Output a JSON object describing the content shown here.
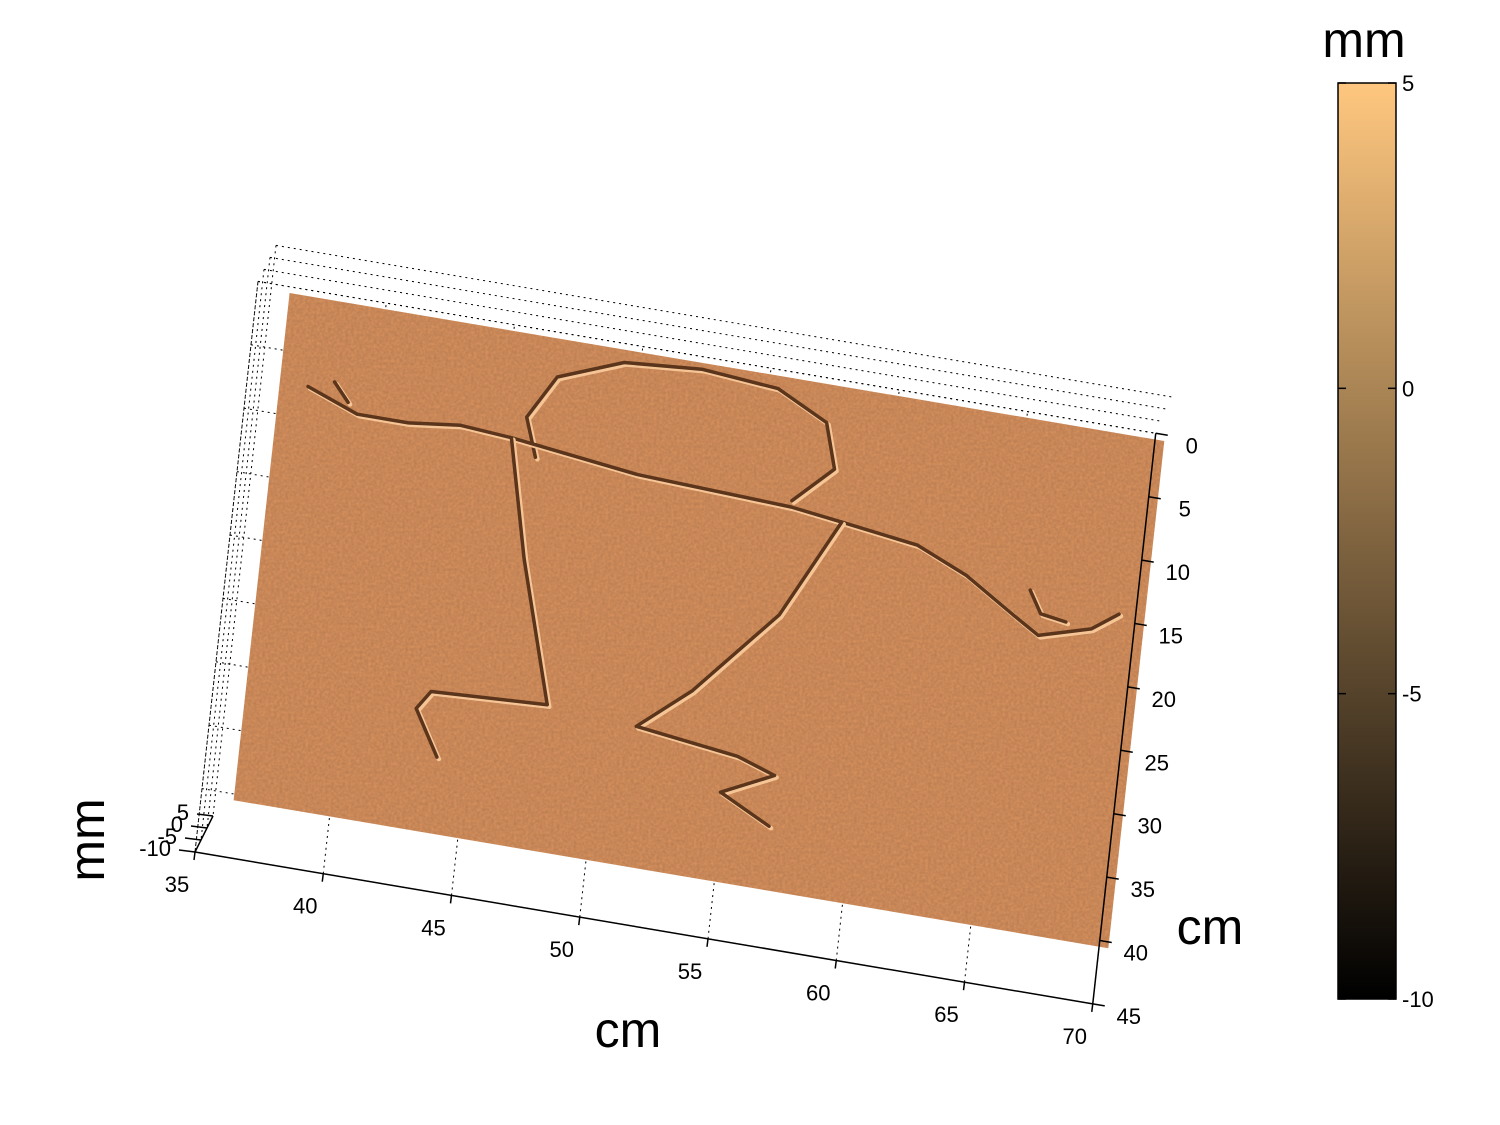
{
  "chart_data": {
    "type": "surface",
    "colormap": "copper",
    "colormap_colors": [
      "#000000",
      "#ffc77f"
    ],
    "surface_base_color": "#dc9460",
    "view": "3d-oblique",
    "x_axis": {
      "label": "cm",
      "range": [
        35,
        70
      ],
      "ticks": [
        "35",
        "40",
        "45",
        "50",
        "55",
        "60",
        "65",
        "70"
      ]
    },
    "y_axis": {
      "label": "cm",
      "range": [
        0,
        45
      ],
      "ticks": [
        "0",
        "5",
        "10",
        "15",
        "20",
        "25",
        "30",
        "35",
        "40",
        "45"
      ]
    },
    "z_axis": {
      "label": "mm",
      "range": [
        -10,
        5
      ],
      "ticks": [
        "-10",
        "-5",
        "0",
        "5"
      ]
    },
    "colorbar": {
      "label": "mm",
      "range": [
        -10,
        5
      ],
      "ticks": [
        "5",
        "0",
        "-5",
        "-10"
      ]
    },
    "grid": true,
    "engraved_figure": {
      "description_in_data_units": "grooves ~ -5 mm deep carved into surface at 0 mm",
      "groove_depth": -5,
      "paths": [
        [
          [
            46,
            12
          ],
          [
            45.5,
            9
          ],
          [
            46.5,
            5.5
          ],
          [
            49,
            3.5
          ],
          [
            52,
            3
          ],
          [
            55,
            3.5
          ],
          [
            57,
            5.5
          ],
          [
            57.5,
            9
          ],
          [
            56,
            12
          ]
        ],
        [
          [
            37,
            9.5
          ],
          [
            39,
            11
          ],
          [
            41,
            11
          ],
          [
            43,
            10.5
          ],
          [
            45,
            10.8
          ],
          [
            50,
            12
          ],
          [
            56,
            12.5
          ],
          [
            58,
            13
          ],
          [
            61,
            13.8
          ],
          [
            63,
            15.5
          ],
          [
            65,
            18
          ],
          [
            66,
            19.2
          ],
          [
            68,
            18
          ],
          [
            69,
            16.5
          ]
        ],
        [
          [
            38,
            8.8
          ],
          [
            38.6,
            10.2
          ]
        ],
        [
          [
            65.5,
            15.8
          ],
          [
            66,
            17.5
          ],
          [
            67,
            17.8
          ]
        ],
        [
          [
            45,
            10.8
          ],
          [
            46,
            20
          ],
          [
            47.5,
            31
          ]
        ],
        [
          [
            58,
            13
          ],
          [
            56,
            21
          ],
          [
            53,
            28
          ],
          [
            51,
            31.5
          ],
          [
            55,
            32.5
          ],
          [
            56.5,
            33.5
          ],
          [
            54.5,
            35.5
          ],
          [
            56.5,
            37.5
          ]
        ],
        [
          [
            47.5,
            31
          ],
          [
            43,
            31.5
          ],
          [
            42.5,
            33
          ],
          [
            43.5,
            36.5
          ]
        ]
      ]
    }
  }
}
